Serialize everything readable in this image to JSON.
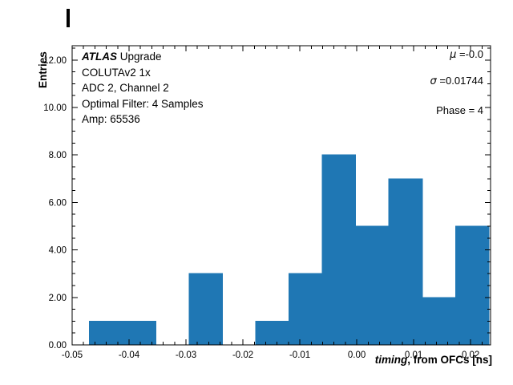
{
  "figure": {
    "background": "#ffffff"
  },
  "chart_data": {
    "type": "bar",
    "subtype": "histogram",
    "title": "",
    "ylabel": "Entries",
    "xlabel": {
      "italic": "timing",
      "rest": ", from OFCs [ns]"
    },
    "xlim": [
      -0.05,
      0.0235
    ],
    "ylim": [
      0,
      12.6
    ],
    "bin_edges": [
      -0.047,
      -0.04115,
      -0.0353,
      -0.02945,
      -0.0236,
      -0.01775,
      -0.0119,
      -0.00605,
      -0.0002,
      0.00565,
      0.0115,
      0.01735,
      0.0232
    ],
    "counts": [
      1,
      1,
      0,
      3,
      0,
      1,
      3,
      8,
      5,
      7,
      2,
      5
    ],
    "bar_color": "#1f77b4",
    "frame_color": "#000000",
    "grid": false,
    "legend": false,
    "x_major_ticks": [
      -0.05,
      -0.04,
      -0.03,
      -0.02,
      -0.01,
      0.0,
      0.01,
      0.02
    ],
    "x_tick_labels": [
      "-0.05",
      "-0.04",
      "-0.03",
      "-0.02",
      "-0.01",
      "0.00",
      "0.01",
      "0.02"
    ],
    "x_minor_step": 0.002,
    "y_major_ticks": [
      0,
      2,
      4,
      6,
      8,
      10,
      12
    ],
    "y_tick_labels": [
      "0.00",
      "2.00",
      "4.00",
      "6.00",
      "8.00",
      "10.00",
      "12.00"
    ],
    "y_minor_step": 0.5,
    "annotations": {
      "info_block": {
        "title_italic": "ATLAS",
        "title_rest": " Upgrade",
        "lines": [
          "COLUTAv2 1x",
          "ADC 2, Channel 2",
          "Optimal Filter: 4 Samples",
          "Amp: 65536"
        ]
      },
      "stats_lines": [
        {
          "sym": "μ",
          "text": " =-0.0"
        },
        {
          "sym": "σ",
          "text": " =0.01744"
        },
        {
          "sym": "",
          "text": "Phase = 4"
        }
      ]
    }
  }
}
